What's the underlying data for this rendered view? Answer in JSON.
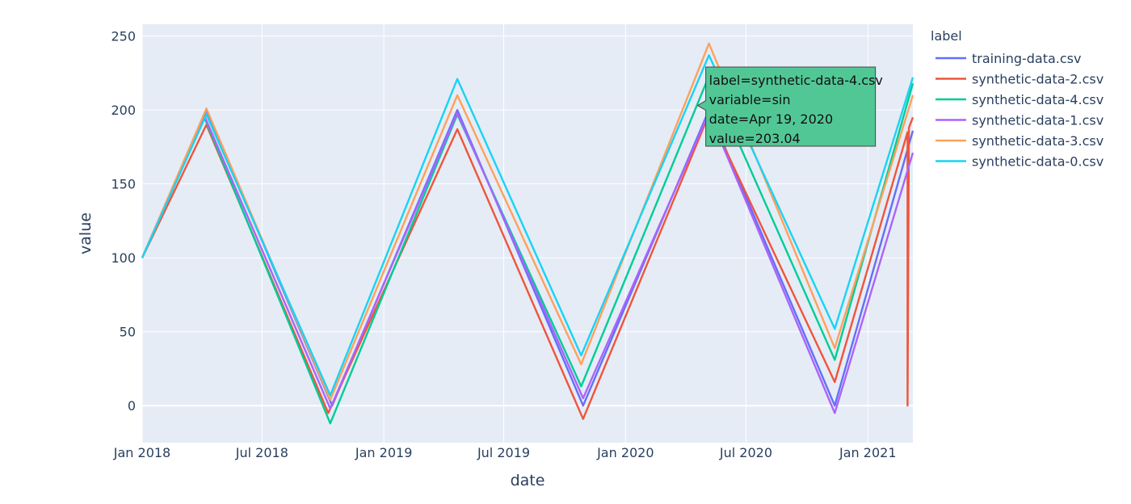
{
  "chart_data": {
    "type": "line",
    "xlabel": "date",
    "ylabel": "value",
    "x_ticks": [
      "Jan 2018",
      "Jul 2018",
      "Jan 2019",
      "Jul 2019",
      "Jan 2020",
      "Jul 2020",
      "Jan 2021"
    ],
    "x_tick_dates": [
      "2018-01-01",
      "2018-07-01",
      "2019-01-01",
      "2019-07-01",
      "2020-01-01",
      "2020-07-01",
      "2021-01-01"
    ],
    "xlim": [
      "2018-01-01",
      "2021-03-10"
    ],
    "y_ticks": [
      0,
      50,
      100,
      150,
      200,
      250
    ],
    "ylim": [
      -25,
      258
    ],
    "grid": true,
    "legend": {
      "title": "label",
      "placement": "right"
    },
    "series": [
      {
        "name": "training-data.csv",
        "color": "#636efa",
        "points": [
          [
            "2018-01-01",
            100
          ],
          [
            "2018-04-08",
            200
          ],
          [
            "2018-10-15",
            0
          ],
          [
            "2019-04-22",
            200
          ],
          [
            "2019-10-29",
            0
          ],
          [
            "2020-05-06",
            200
          ],
          [
            "2020-11-12",
            0
          ],
          [
            "2021-03-10",
            186
          ]
        ]
      },
      {
        "name": "synthetic-data-2.csv",
        "color": "#ef553b",
        "points": [
          [
            "2018-01-01",
            100
          ],
          [
            "2018-04-08",
            190
          ],
          [
            "2018-10-09",
            -5
          ],
          [
            "2019-04-22",
            187
          ],
          [
            "2019-10-29",
            -9
          ],
          [
            "2020-05-06",
            197
          ],
          [
            "2020-11-12",
            16
          ],
          [
            "2021-03-02",
            185
          ],
          [
            "2021-03-02",
            0
          ],
          [
            "2021-03-04",
            188
          ],
          [
            "2021-03-10",
            195
          ]
        ]
      },
      {
        "name": "synthetic-data-4.csv",
        "color": "#00cc96",
        "points": [
          [
            "2018-01-01",
            100
          ],
          [
            "2018-04-05",
            195
          ],
          [
            "2018-10-12",
            -12
          ],
          [
            "2019-04-22",
            197
          ],
          [
            "2019-10-26",
            13
          ],
          [
            "2020-05-06",
            223
          ],
          [
            "2020-11-12",
            31
          ],
          [
            "2021-03-10",
            218
          ]
        ]
      },
      {
        "name": "synthetic-data-1.csv",
        "color": "#ab63fa",
        "points": [
          [
            "2018-01-01",
            100
          ],
          [
            "2018-04-05",
            196
          ],
          [
            "2018-10-12",
            -2
          ],
          [
            "2019-04-22",
            198
          ],
          [
            "2019-10-29",
            5
          ],
          [
            "2020-05-06",
            198
          ],
          [
            "2020-11-12",
            -5
          ],
          [
            "2021-03-10",
            171
          ]
        ]
      },
      {
        "name": "synthetic-data-3.csv",
        "color": "#ffa15a",
        "points": [
          [
            "2018-01-01",
            100
          ],
          [
            "2018-04-08",
            201
          ],
          [
            "2018-10-12",
            4
          ],
          [
            "2019-04-22",
            210
          ],
          [
            "2019-10-26",
            28
          ],
          [
            "2020-05-06",
            245
          ],
          [
            "2020-11-12",
            39
          ],
          [
            "2021-03-10",
            210
          ]
        ]
      },
      {
        "name": "synthetic-data-0.csv",
        "color": "#19d3f3",
        "points": [
          [
            "2018-01-01",
            100
          ],
          [
            "2018-04-08",
            197
          ],
          [
            "2018-10-12",
            7
          ],
          [
            "2019-04-22",
            221
          ],
          [
            "2019-10-26",
            34
          ],
          [
            "2020-05-06",
            237
          ],
          [
            "2020-11-12",
            52
          ],
          [
            "2021-03-10",
            222
          ]
        ]
      }
    ],
    "hover": {
      "date": "2020-04-19",
      "value": 203.04,
      "color": "#52c796",
      "lines": [
        "label=synthetic-data-4.csv",
        "variable=sin",
        "date=Apr 19, 2020",
        "value=203.04"
      ]
    }
  }
}
